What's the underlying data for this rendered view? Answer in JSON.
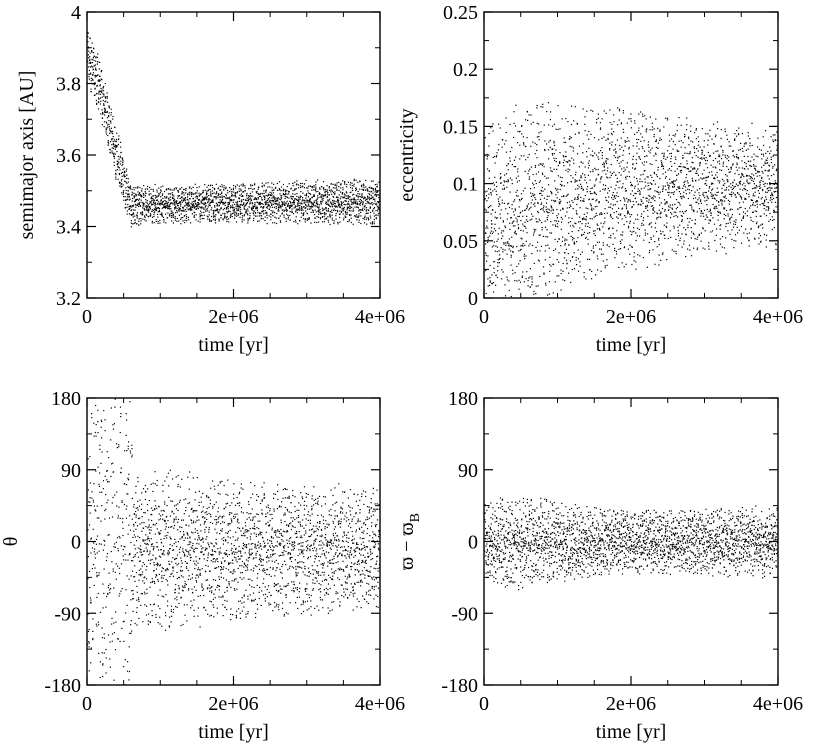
{
  "colors": {
    "background": "#ffffff",
    "ink": "#000000"
  },
  "chart_data": [
    {
      "type": "scatter",
      "panel": "top-left",
      "xlabel": "time  [yr]",
      "ylabel": "semimajor axis  [AU]",
      "xlim": [
        0,
        4000000
      ],
      "ylim": [
        3.2,
        4.0
      ],
      "xticks": [
        0,
        2000000,
        4000000
      ],
      "xtick_labels": [
        "0",
        "2e+06",
        "4e+06"
      ],
      "yticks": [
        3.2,
        3.4,
        3.6,
        3.8,
        4.0
      ],
      "ytick_labels": [
        "3.2",
        "3.4",
        "3.6",
        "3.8",
        "4"
      ],
      "grid": false,
      "series": [
        {
          "values": [
            {
              "x": 0,
              "y": 3.88,
              "spread": 0.05
            },
            {
              "x": 150000,
              "y": 3.8,
              "spread": 0.05
            },
            {
              "x": 300000,
              "y": 3.68,
              "spread": 0.05
            },
            {
              "x": 450000,
              "y": 3.56,
              "spread": 0.05
            },
            {
              "x": 600000,
              "y": 3.46,
              "spread": 0.04
            },
            {
              "x": 1000000,
              "y": 3.465,
              "spread": 0.035
            },
            {
              "x": 2000000,
              "y": 3.465,
              "spread": 0.035
            },
            {
              "x": 3000000,
              "y": 3.47,
              "spread": 0.04
            },
            {
              "x": 4000000,
              "y": 3.47,
              "spread": 0.04
            }
          ]
        }
      ]
    },
    {
      "type": "scatter",
      "panel": "top-right",
      "xlabel": "time  [yr]",
      "ylabel": "eccentricity",
      "xlim": [
        0,
        4000000
      ],
      "ylim": [
        0,
        0.25
      ],
      "xticks": [
        0,
        2000000,
        4000000
      ],
      "xtick_labels": [
        "0",
        "2e+06",
        "4e+06"
      ],
      "yticks": [
        0,
        0.05,
        0.1,
        0.15,
        0.2,
        0.25
      ],
      "ytick_labels": [
        "0",
        "0.05",
        "0.1",
        "0.15",
        "0.2",
        "0.25"
      ],
      "grid": false,
      "series": [
        {
          "values": [
            {
              "x": 0,
              "y": 0.07,
              "spread": 0.05
            },
            {
              "x": 300000,
              "y": 0.07,
              "spread": 0.06
            },
            {
              "x": 600000,
              "y": 0.08,
              "spread": 0.06
            },
            {
              "x": 1200000,
              "y": 0.09,
              "spread": 0.05
            },
            {
              "x": 2000000,
              "y": 0.095,
              "spread": 0.045
            },
            {
              "x": 3000000,
              "y": 0.097,
              "spread": 0.037
            },
            {
              "x": 4000000,
              "y": 0.097,
              "spread": 0.035
            }
          ]
        }
      ]
    },
    {
      "type": "scatter",
      "panel": "bottom-left",
      "xlabel": "time  [yr]",
      "ylabel": "θ",
      "xlim": [
        0,
        4000000
      ],
      "ylim": [
        -180,
        180
      ],
      "xticks": [
        0,
        2000000,
        4000000
      ],
      "xtick_labels": [
        "0",
        "2e+06",
        "4e+06"
      ],
      "yticks": [
        -180,
        -90,
        0,
        90,
        180
      ],
      "ytick_labels": [
        "-180",
        "-90",
        "0",
        "90",
        "180"
      ],
      "grid": false,
      "series": [
        {
          "values": [
            {
              "x": 0,
              "y": 0,
              "spread": 180
            },
            {
              "x": 600000,
              "y": 0,
              "spread": 180
            },
            {
              "x": 620000,
              "y": -10,
              "spread": 60
            },
            {
              "x": 1200000,
              "y": -10,
              "spread": 65
            },
            {
              "x": 2000000,
              "y": -10,
              "spread": 55
            },
            {
              "x": 3000000,
              "y": -10,
              "spread": 52
            },
            {
              "x": 4000000,
              "y": -10,
              "spread": 52
            }
          ]
        }
      ]
    },
    {
      "type": "scatter",
      "panel": "bottom-right",
      "xlabel": "time  [yr]",
      "ylabel": "ϖ − ϖ",
      "ylabel_sub": "B",
      "xlim": [
        0,
        4000000
      ],
      "ylim": [
        -180,
        180
      ],
      "xticks": [
        0,
        2000000,
        4000000
      ],
      "xtick_labels": [
        "0",
        "2e+06",
        "4e+06"
      ],
      "yticks": [
        -180,
        -90,
        0,
        90,
        180
      ],
      "ytick_labels": [
        "-180",
        "-90",
        "0",
        "90",
        "180"
      ],
      "grid": false,
      "series": [
        {
          "values": [
            {
              "x": 0,
              "y": 0,
              "spread": 30
            },
            {
              "x": 300000,
              "y": 0,
              "spread": 40
            },
            {
              "x": 1200000,
              "y": 0,
              "spread": 30
            },
            {
              "x": 2000000,
              "y": 0,
              "spread": 25
            },
            {
              "x": 3000000,
              "y": 0,
              "spread": 27
            },
            {
              "x": 4000000,
              "y": 0,
              "spread": 30
            }
          ]
        }
      ]
    }
  ]
}
